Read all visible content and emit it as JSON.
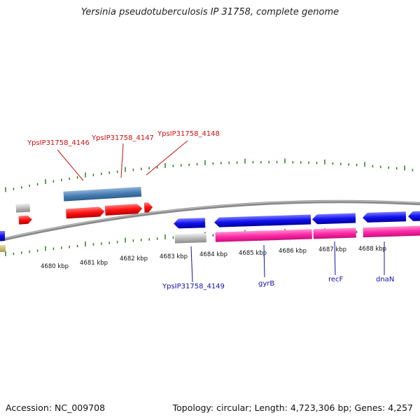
{
  "title": "Yersinia pseudotuberculosis IP 31758, complete genome",
  "footer": {
    "accession": "Accession: NC_009708",
    "summary": "Topology: circular; Length: 4,723,306 bp; Genes: 4,257"
  },
  "kbp_labels": [
    "4680 kbp",
    "4681 kbp",
    "4682 kbp",
    "4683 kbp",
    "4684 kbp",
    "4685 kbp",
    "4686 kbp",
    "4687 kbp",
    "4688 kbp"
  ],
  "top_genes": [
    {
      "label": "YpsIP31758_4146"
    },
    {
      "label": "YpsIP31758_4147"
    },
    {
      "label": "YpsIP31758_4148"
    }
  ],
  "bottom_genes": [
    {
      "label": "YpsIP31758_4149"
    },
    {
      "label": "gyrB"
    },
    {
      "label": "recF"
    },
    {
      "label": "dnaN"
    }
  ],
  "colors": {
    "cds_forward": "#ff1111",
    "cds_reverse": "#1111ee",
    "gene_bar": "#4a7fb5",
    "rna": "#ff2aa8",
    "misc": "#bbbbbb",
    "tick": "#2e7d1e",
    "backbone": "#8a8a8a",
    "label_red": "#cc1111",
    "label_blue": "#1111aa"
  }
}
